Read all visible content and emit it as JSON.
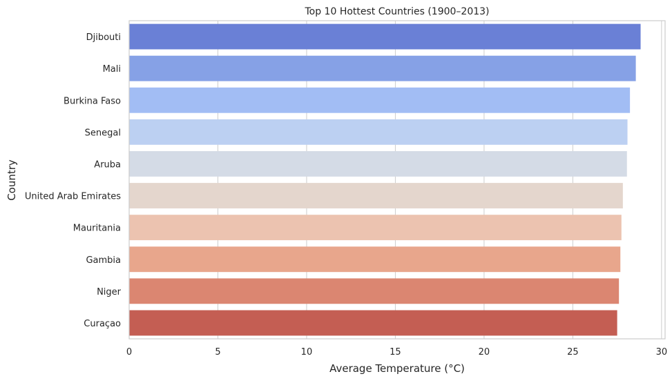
{
  "chart_data": {
    "type": "bar",
    "orientation": "horizontal",
    "title": "Top 10 Hottest Countries (1900–2013)",
    "xlabel": "Average Temperature (°C)",
    "ylabel": "Country",
    "xlim": [
      0,
      30.2
    ],
    "xticks": [
      0,
      5,
      10,
      15,
      20,
      25,
      30
    ],
    "grid": "vertical",
    "categories": [
      "Djibouti",
      "Mali",
      "Burkina Faso",
      "Senegal",
      "Aruba",
      "United Arab Emirates",
      "Mauritania",
      "Gambia",
      "Niger",
      "Curaçao"
    ],
    "values": [
      28.82,
      28.55,
      28.22,
      28.08,
      28.05,
      27.82,
      27.74,
      27.68,
      27.6,
      27.5
    ],
    "colors": [
      "#6a80d6",
      "#86a1e6",
      "#a2bdf4",
      "#bcd0f2",
      "#d4dbe6",
      "#e4d6cd",
      "#ecc3b0",
      "#e8a68c",
      "#db8671",
      "#c45e53"
    ]
  }
}
